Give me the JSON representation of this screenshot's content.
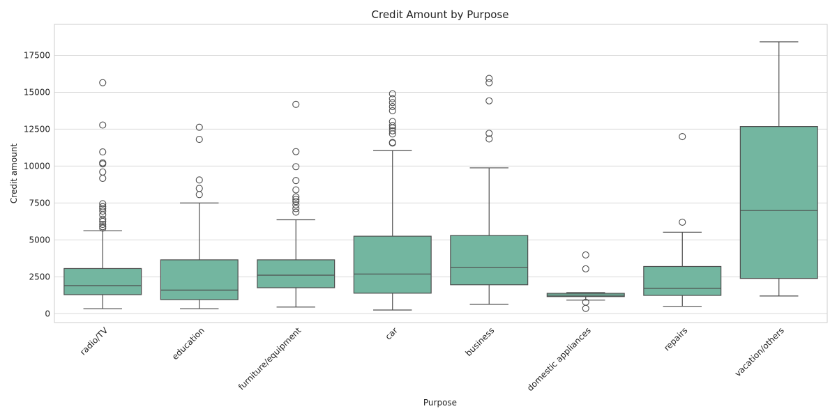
{
  "chart_data": {
    "type": "box",
    "title": "Credit Amount by Purpose",
    "xlabel": "Purpose",
    "ylabel": "Credit amount",
    "ylim": [
      -600,
      19600
    ],
    "yticks": [
      0,
      2500,
      5000,
      7500,
      10000,
      12500,
      15000,
      17500
    ],
    "grid": true,
    "box_color": "#73b6a0",
    "line_color": "#4d4d4d",
    "categories": [
      "radio/TV",
      "education",
      "furniture/equipment",
      "car",
      "business",
      "domestic appliances",
      "repairs",
      "vacation/others"
    ],
    "boxes": [
      {
        "whisker_low": 340,
        "q1": 1290,
        "median": 1900,
        "q3": 3060,
        "whisker_high": 5620,
        "outliers": [
          15650,
          12780,
          10960,
          10220,
          10150,
          9600,
          9170,
          7450,
          7250,
          7120,
          6950,
          6700,
          6400,
          6250,
          6050,
          5900,
          5800
        ]
      },
      {
        "whisker_low": 340,
        "q1": 950,
        "median": 1600,
        "q3": 3650,
        "whisker_high": 7500,
        "outliers": [
          12630,
          11810,
          9060,
          8490,
          8070
        ]
      },
      {
        "whisker_low": 450,
        "q1": 1760,
        "median": 2610,
        "q3": 3650,
        "whisker_high": 6360,
        "outliers": [
          14180,
          10980,
          9960,
          9020,
          8390,
          7910,
          7750,
          7600,
          7370,
          7120,
          6880
        ]
      },
      {
        "whisker_low": 250,
        "q1": 1390,
        "median": 2690,
        "q3": 5250,
        "whisker_high": 11050,
        "outliers": [
          14900,
          14560,
          14300,
          14030,
          13750,
          13020,
          12750,
          12590,
          12390,
          12180,
          11600,
          11560
        ]
      },
      {
        "whisker_low": 640,
        "q1": 1960,
        "median": 3150,
        "q3": 5300,
        "whisker_high": 9880,
        "outliers": [
          15940,
          15650,
          14420,
          12220,
          11840
        ]
      },
      {
        "whisker_low": 920,
        "q1": 1160,
        "median": 1260,
        "q3": 1380,
        "whisker_high": 1430,
        "outliers": [
          3980,
          3040,
          780,
          360
        ]
      },
      {
        "whisker_low": 500,
        "q1": 1240,
        "median": 1720,
        "q3": 3200,
        "whisker_high": 5520,
        "outliers": [
          12000,
          6200
        ]
      },
      {
        "whisker_low": 1200,
        "q1": 2390,
        "median": 6990,
        "q3": 12680,
        "whisker_high": 18420,
        "outliers": []
      }
    ]
  }
}
